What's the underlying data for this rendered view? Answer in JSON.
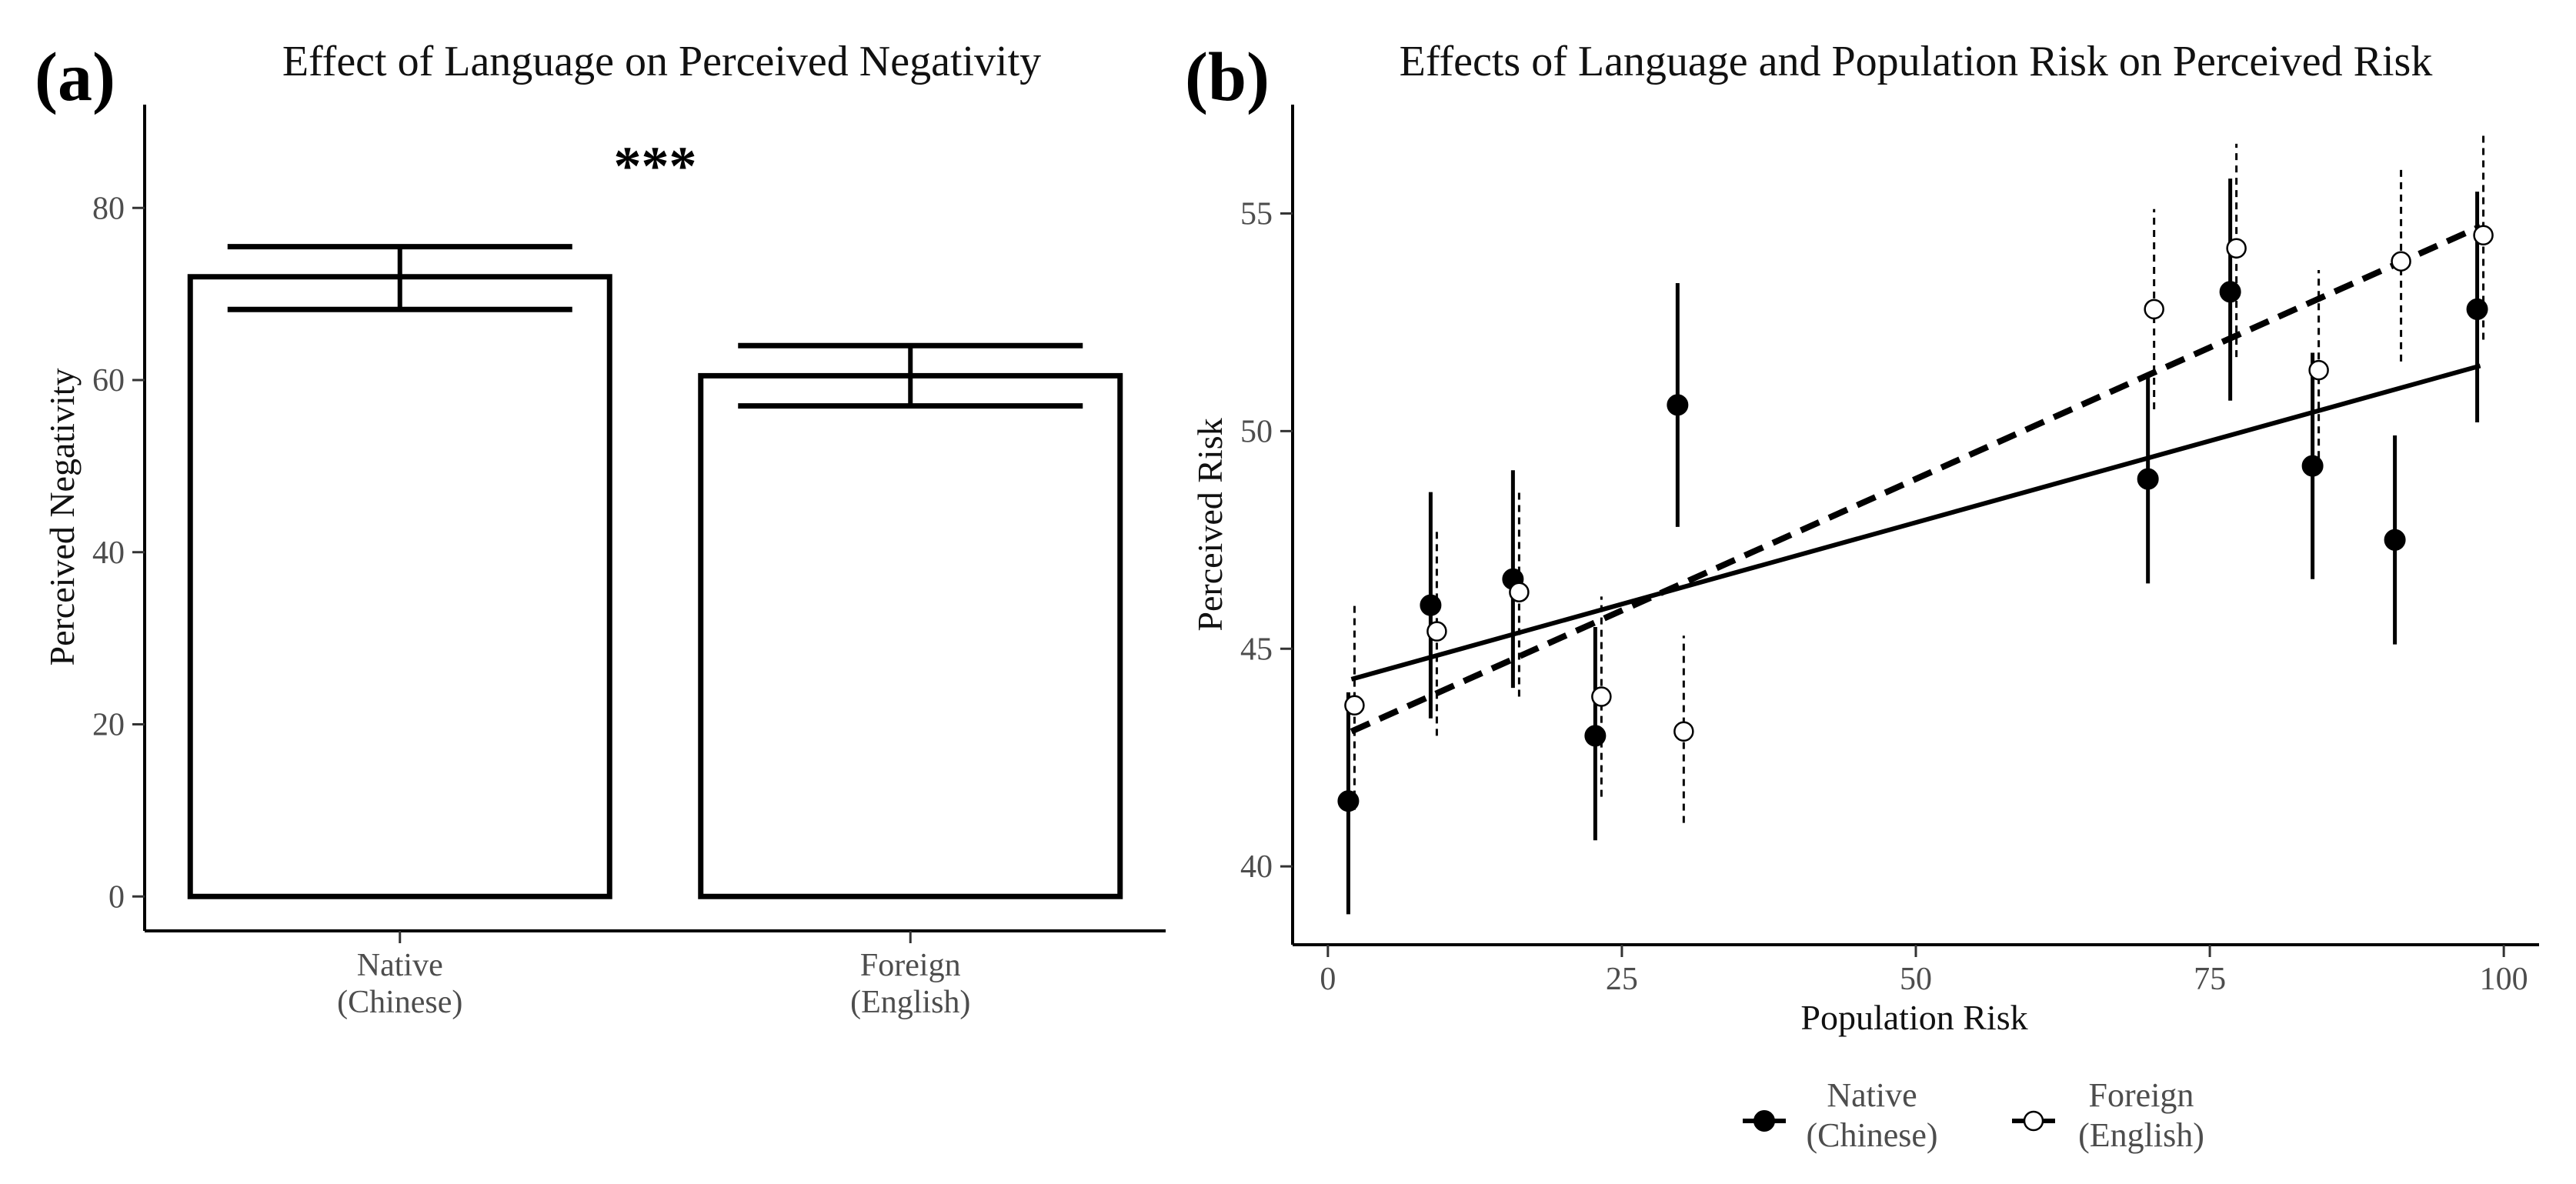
{
  "chart_data": [
    {
      "panel_label": "(a)",
      "type": "bar",
      "title": "Effect of Language on Perceived Negativity",
      "xlabel": "",
      "ylabel": "Perceived Negativity",
      "ylim": [
        -4,
        92
      ],
      "yticks": [
        0,
        20,
        40,
        60,
        80
      ],
      "categories": [
        "Native (Chinese)",
        "Foreign (English)"
      ],
      "category_lines": [
        [
          "Native",
          "(Chinese)"
        ],
        [
          "Foreign",
          "(English)"
        ]
      ],
      "values": [
        72,
        60.5
      ],
      "error_upper": [
        75.5,
        64
      ],
      "error_lower": [
        68.2,
        57
      ],
      "annotation": "***",
      "grid": false
    },
    {
      "panel_label": "(b)",
      "type": "scatter",
      "title": "Effects of Language and Population Risk on Perceived Risk",
      "xlabel": "Population Risk",
      "ylabel": "Perceived Risk",
      "xlim": [
        -3,
        103
      ],
      "ylim": [
        38.2,
        57.5
      ],
      "xticks": [
        0,
        25,
        50,
        75,
        100
      ],
      "yticks": [
        40,
        45,
        50,
        55
      ],
      "grid": false,
      "legend_position": "bottom",
      "series": [
        {
          "name": "Native (Chinese)",
          "legend_lines": [
            "Native",
            "(Chinese)"
          ],
          "marker": "filled-circle",
          "line_style": "solid",
          "x": [
            2,
            9,
            16,
            23,
            30,
            70,
            77,
            84,
            91,
            98
          ],
          "y": [
            41.5,
            46.0,
            46.6,
            43.0,
            50.6,
            48.9,
            53.2,
            49.2,
            47.5,
            52.8
          ],
          "ci_low": [
            38.9,
            43.4,
            44.1,
            40.6,
            47.8,
            46.5,
            50.7,
            46.6,
            45.1,
            50.2
          ],
          "ci_high": [
            44.0,
            48.6,
            49.1,
            45.5,
            53.4,
            51.3,
            55.8,
            51.8,
            49.9,
            55.5
          ],
          "fit": {
            "x0": 2,
            "y0": 44.3,
            "x1": 98,
            "y1": 51.5
          }
        },
        {
          "name": "Foreign (English)",
          "legend_lines": [
            "Foreign",
            "(English)"
          ],
          "marker": "open-circle",
          "line_style": "dashed",
          "x": [
            2,
            9,
            16,
            23,
            30,
            70,
            77,
            84,
            91,
            98
          ],
          "y": [
            43.7,
            45.4,
            46.3,
            43.9,
            43.1,
            52.8,
            54.2,
            51.4,
            53.9,
            54.5
          ],
          "ci_low": [
            41.3,
            43.0,
            43.9,
            41.6,
            41.0,
            50.5,
            51.7,
            49.1,
            51.6,
            52.1
          ],
          "ci_high": [
            46.0,
            47.8,
            48.6,
            46.2,
            45.3,
            55.1,
            56.6,
            53.7,
            56.1,
            56.8
          ],
          "fit": {
            "x0": 2,
            "y0": 43.1,
            "x1": 98,
            "y1": 54.7
          }
        }
      ]
    }
  ]
}
